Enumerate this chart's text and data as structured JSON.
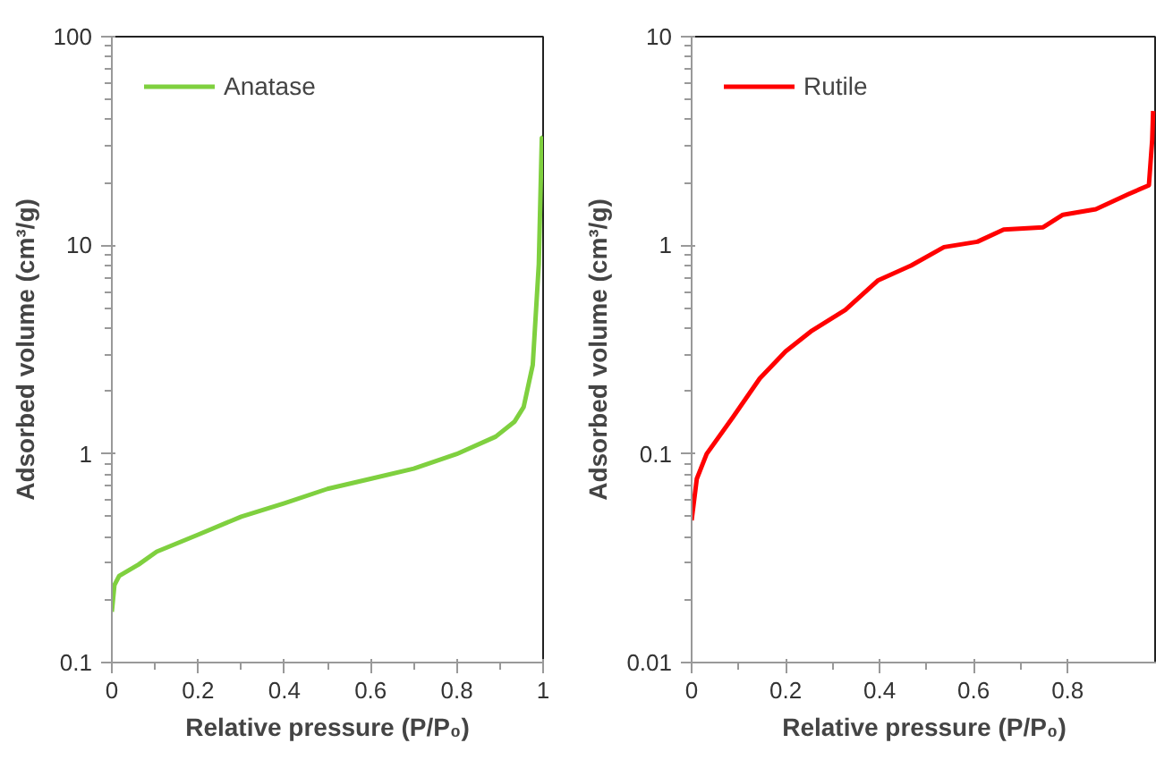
{
  "chart_data": [
    {
      "type": "line",
      "xlabel": "Relative pressure (P/P₀)",
      "ylabel": "Adsorbed volume (cm³/g)",
      "log": "y",
      "legend": "top left",
      "grid": false,
      "xlim": [
        0,
        1
      ],
      "xticks": [
        0,
        0.2,
        0.4,
        0.6,
        0.8,
        1
      ],
      "ylim": [
        0.1,
        100
      ],
      "yticks": [
        0.1,
        1,
        10,
        100
      ],
      "series": [
        {
          "name": "Anatase",
          "color": "#7fd03f",
          "x": [
            0,
            0.006,
            0.017,
            0.062,
            0.104,
            0.2,
            0.3,
            0.4,
            0.5,
            0.6,
            0.7,
            0.8,
            0.89,
            0.934,
            0.955,
            0.976,
            0.99,
            0.997,
            1.0
          ],
          "values": [
            0.175,
            0.235,
            0.26,
            0.295,
            0.34,
            0.41,
            0.5,
            0.58,
            0.68,
            0.76,
            0.85,
            1.0,
            1.21,
            1.43,
            1.68,
            2.67,
            8.1,
            32.7,
            33
          ]
        }
      ]
    },
    {
      "type": "line",
      "xlabel": "Relative pressure (P/P₀)",
      "ylabel": "Adsorbed volume (cm³/g)",
      "log": "y",
      "legend": "top left",
      "grid": false,
      "xlim": [
        0,
        0.99
      ],
      "xticks": [
        0,
        0.2,
        0.4,
        0.6,
        0.8
      ],
      "ylim": [
        0.01,
        10
      ],
      "yticks": [
        0.01,
        0.1,
        1,
        10
      ],
      "series": [
        {
          "name": "Rutile",
          "color": "#ff0000",
          "x": [
            0,
            0.011,
            0.032,
            0.088,
            0.145,
            0.2,
            0.256,
            0.327,
            0.397,
            0.467,
            0.537,
            0.608,
            0.664,
            0.748,
            0.79,
            0.86,
            0.93,
            0.973,
            0.98,
            0.982
          ],
          "values": [
            0.048,
            0.076,
            0.1,
            0.15,
            0.23,
            0.31,
            0.39,
            0.49,
            0.68,
            0.8,
            0.98,
            1.04,
            1.19,
            1.22,
            1.4,
            1.49,
            1.76,
            1.94,
            3.2,
            4.4
          ]
        }
      ]
    }
  ]
}
